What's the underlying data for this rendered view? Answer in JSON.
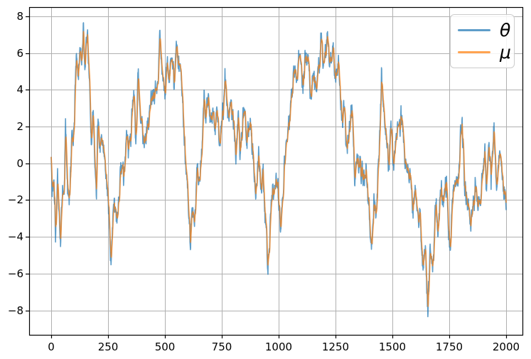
{
  "figure": {
    "background": "#ffffff"
  },
  "chart_data": {
    "type": "line",
    "title": "",
    "xlabel": "",
    "ylabel": "",
    "x_range": [
      0,
      2000
    ],
    "n_points": 2001,
    "xlim": [
      -97,
      2072
    ],
    "ylim": [
      -9.33,
      8.5
    ],
    "xticks": [
      0,
      250,
      500,
      750,
      1000,
      1250,
      1500,
      1750,
      2000
    ],
    "xticklabels": [
      "0",
      "250",
      "500",
      "750",
      "1000",
      "1250",
      "1500",
      "1750",
      "2000"
    ],
    "yticks": [
      -8,
      -6,
      -4,
      -2,
      0,
      2,
      4,
      6,
      8
    ],
    "yticklabels": [
      "−8",
      "−6",
      "−4",
      "−2",
      "0",
      "2",
      "4",
      "6",
      "8"
    ],
    "grid": true,
    "grid_color": "#b0b0b0",
    "spine_color": "#000000",
    "legend": {
      "position": "upper right",
      "entries": [
        {
          "label": "θ",
          "color": "#1f77b4"
        },
        {
          "label": "μ",
          "color": "#ff7f0e"
        }
      ]
    },
    "series": [
      {
        "name": "θ",
        "color": "#1f77b4",
        "alpha": 0.72,
        "line_width": 1.6,
        "value_clip": [
          -8.45,
          7.7
        ],
        "noise": {
          "seed": 1337,
          "ar": 0.72,
          "scale": 0.55
        },
        "keypoints": [
          [
            0,
            0.5
          ],
          [
            4,
            -1.5
          ],
          [
            12,
            -0.4
          ],
          [
            19,
            -3.2
          ],
          [
            28,
            -0.9
          ],
          [
            41,
            -4.3
          ],
          [
            50,
            -0.9
          ],
          [
            57,
            -1.9
          ],
          [
            63,
            2.8
          ],
          [
            72,
            -2.0
          ],
          [
            81,
            -2.3
          ],
          [
            90,
            2.0
          ],
          [
            97,
            1.0
          ],
          [
            103,
            3.2
          ],
          [
            110,
            6.2
          ],
          [
            118,
            4.9
          ],
          [
            126,
            6.6
          ],
          [
            134,
            5.2
          ],
          [
            142,
            6.8
          ],
          [
            150,
            5.6
          ],
          [
            158,
            7.3
          ],
          [
            165,
            5.3
          ],
          [
            170,
            4.0
          ],
          [
            176,
            0.5
          ],
          [
            184,
            2.7
          ],
          [
            191,
            0.9
          ],
          [
            199,
            -1.8
          ],
          [
            206,
            3.0
          ],
          [
            214,
            1.2
          ],
          [
            224,
            0.3
          ],
          [
            234,
            1.0
          ],
          [
            244,
            -1.6
          ],
          [
            254,
            -3.2
          ],
          [
            263,
            -5.0
          ],
          [
            272,
            -2.9
          ],
          [
            281,
            -2.3
          ],
          [
            292,
            -3.5
          ],
          [
            300,
            -1.3
          ],
          [
            306,
            0.1
          ],
          [
            318,
            -0.8
          ],
          [
            330,
            2.5
          ],
          [
            340,
            0.9
          ],
          [
            352,
            2.0
          ],
          [
            363,
            4.3
          ],
          [
            372,
            1.5
          ],
          [
            384,
            4.5
          ],
          [
            395,
            2.2
          ],
          [
            405,
            0.8
          ],
          [
            416,
            1.4
          ],
          [
            430,
            3.2
          ],
          [
            443,
            3.4
          ],
          [
            455,
            4.3
          ],
          [
            462,
            5.0
          ],
          [
            469,
            4.4
          ],
          [
            477,
            7.6
          ],
          [
            487,
            5.7
          ],
          [
            500,
            4.0
          ],
          [
            510,
            5.9
          ],
          [
            520,
            4.8
          ],
          [
            530,
            6.3
          ],
          [
            540,
            4.2
          ],
          [
            550,
            6.1
          ],
          [
            560,
            5.6
          ],
          [
            572,
            4.4
          ],
          [
            582,
            2.4
          ],
          [
            592,
            0.3
          ],
          [
            602,
            -1.5
          ],
          [
            612,
            -4.4
          ],
          [
            620,
            -2.2
          ],
          [
            630,
            -3.0
          ],
          [
            642,
            -0.3
          ],
          [
            652,
            -1.0
          ],
          [
            662,
            1.4
          ],
          [
            672,
            3.6
          ],
          [
            680,
            2.4
          ],
          [
            690,
            4.2
          ],
          [
            700,
            1.8
          ],
          [
            710,
            3.0
          ],
          [
            720,
            1.6
          ],
          [
            730,
            2.4
          ],
          [
            742,
            1.2
          ],
          [
            752,
            2.6
          ],
          [
            764,
            4.6
          ],
          [
            776,
            2.5
          ],
          [
            788,
            3.6
          ],
          [
            800,
            2.4
          ],
          [
            812,
            1.0
          ],
          [
            822,
            3.2
          ],
          [
            830,
            0.9
          ],
          [
            840,
            2.2
          ],
          [
            852,
            3.1
          ],
          [
            862,
            1.2
          ],
          [
            876,
            2.4
          ],
          [
            888,
            0.2
          ],
          [
            900,
            -1.2
          ],
          [
            912,
            0.3
          ],
          [
            922,
            -1.8
          ],
          [
            932,
            -0.5
          ],
          [
            942,
            -3.2
          ],
          [
            953,
            -5.7
          ],
          [
            962,
            -3.4
          ],
          [
            972,
            -1.2
          ],
          [
            982,
            -1.6
          ],
          [
            990,
            -0.4
          ],
          [
            1000,
            -2.2
          ],
          [
            1010,
            -3.4
          ],
          [
            1022,
            -1.0
          ],
          [
            1034,
            1.2
          ],
          [
            1046,
            2.6
          ],
          [
            1058,
            4.1
          ],
          [
            1070,
            5.1
          ],
          [
            1082,
            4.4
          ],
          [
            1094,
            6.6
          ],
          [
            1106,
            4.6
          ],
          [
            1118,
            5.6
          ],
          [
            1130,
            5.9
          ],
          [
            1140,
            3.7
          ],
          [
            1152,
            5.0
          ],
          [
            1164,
            4.1
          ],
          [
            1178,
            5.4
          ],
          [
            1188,
            6.9
          ],
          [
            1200,
            5.1
          ],
          [
            1214,
            6.8
          ],
          [
            1228,
            5.3
          ],
          [
            1240,
            6.0
          ],
          [
            1252,
            4.5
          ],
          [
            1264,
            5.4
          ],
          [
            1276,
            3.4
          ],
          [
            1288,
            2.6
          ],
          [
            1298,
            0.8
          ],
          [
            1310,
            1.8
          ],
          [
            1322,
            3.0
          ],
          [
            1334,
            -0.6
          ],
          [
            1346,
            0.6
          ],
          [
            1358,
            0.2
          ],
          [
            1372,
            -1.2
          ],
          [
            1384,
            -0.2
          ],
          [
            1396,
            -2.2
          ],
          [
            1408,
            -4.5
          ],
          [
            1418,
            -1.8
          ],
          [
            1428,
            -3.1
          ],
          [
            1440,
            0.3
          ],
          [
            1452,
            5.0
          ],
          [
            1460,
            3.2
          ],
          [
            1470,
            2.2
          ],
          [
            1482,
            0.4
          ],
          [
            1494,
            2.0
          ],
          [
            1506,
            -0.3
          ],
          [
            1518,
            2.2
          ],
          [
            1530,
            1.2
          ],
          [
            1542,
            2.3
          ],
          [
            1554,
            0.3
          ],
          [
            1566,
            -0.9
          ],
          [
            1578,
            -0.1
          ],
          [
            1590,
            -2.3
          ],
          [
            1602,
            -1.5
          ],
          [
            1612,
            -3.3
          ],
          [
            1622,
            -2.3
          ],
          [
            1634,
            -6.4
          ],
          [
            1644,
            -4.3
          ],
          [
            1656,
            -8.1
          ],
          [
            1666,
            -4.7
          ],
          [
            1676,
            -5.5
          ],
          [
            1688,
            -2.7
          ],
          [
            1700,
            -3.5
          ],
          [
            1712,
            -1.0
          ],
          [
            1724,
            -2.5
          ],
          [
            1738,
            -0.7
          ],
          [
            1752,
            -4.6
          ],
          [
            1764,
            -2.3
          ],
          [
            1778,
            -1.1
          ],
          [
            1792,
            -0.4
          ],
          [
            1806,
            2.1
          ],
          [
            1818,
            -1.0
          ],
          [
            1830,
            -2.3
          ],
          [
            1842,
            -3.9
          ],
          [
            1854,
            -2.7
          ],
          [
            1866,
            -0.8
          ],
          [
            1878,
            -2.2
          ],
          [
            1890,
            -1.3
          ],
          [
            1902,
            0.8
          ],
          [
            1914,
            -0.8
          ],
          [
            1924,
            1.4
          ],
          [
            1934,
            -1.2
          ],
          [
            1947,
            2.1
          ],
          [
            1958,
            -0.6
          ],
          [
            1972,
            0.9
          ],
          [
            1986,
            -1.1
          ],
          [
            2000,
            -2.2
          ]
        ]
      },
      {
        "name": "μ",
        "color": "#ff7f0e",
        "alpha": 0.72,
        "line_width": 1.6,
        "derived": {
          "from": "θ",
          "method": "ema",
          "ema_alpha": 0.35
        }
      }
    ]
  }
}
